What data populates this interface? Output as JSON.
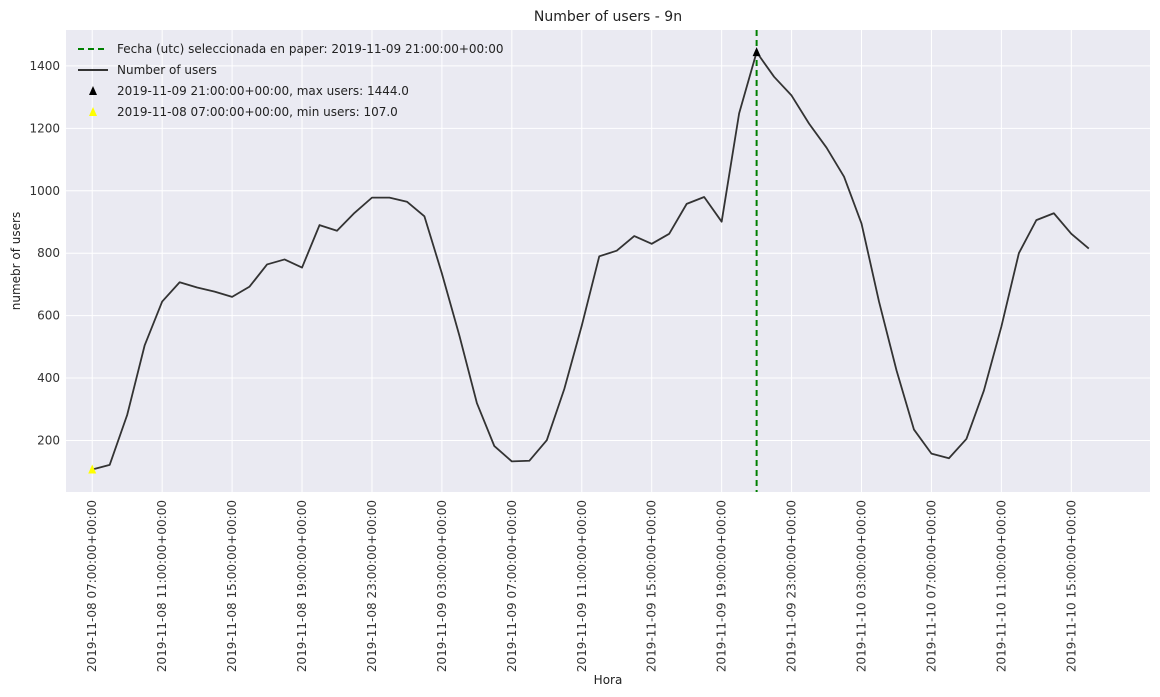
{
  "chart_data": {
    "type": "line",
    "title": "Number of users - 9n",
    "xlabel": "Hora",
    "ylabel": "numebr of users",
    "ylim": [
      35,
      1515
    ],
    "yticks": [
      200,
      400,
      600,
      800,
      1000,
      1200,
      1400
    ],
    "xlim": [
      -1.5,
      60.5
    ],
    "grid": true,
    "legend_position": "top-left",
    "xtick_labels": [
      {
        "i": 0,
        "label": "2019-11-08 07:00:00+00:00"
      },
      {
        "i": 4,
        "label": "2019-11-08 11:00:00+00:00"
      },
      {
        "i": 8,
        "label": "2019-11-08 15:00:00+00:00"
      },
      {
        "i": 12,
        "label": "2019-11-08 19:00:00+00:00"
      },
      {
        "i": 16,
        "label": "2019-11-08 23:00:00+00:00"
      },
      {
        "i": 20,
        "label": "2019-11-09 03:00:00+00:00"
      },
      {
        "i": 24,
        "label": "2019-11-09 07:00:00+00:00"
      },
      {
        "i": 28,
        "label": "2019-11-09 11:00:00+00:00"
      },
      {
        "i": 32,
        "label": "2019-11-09 15:00:00+00:00"
      },
      {
        "i": 36,
        "label": "2019-11-09 19:00:00+00:00"
      },
      {
        "i": 40,
        "label": "2019-11-09 23:00:00+00:00"
      },
      {
        "i": 44,
        "label": "2019-11-10 03:00:00+00:00"
      },
      {
        "i": 48,
        "label": "2019-11-10 07:00:00+00:00"
      },
      {
        "i": 52,
        "label": "2019-11-10 11:00:00+00:00"
      },
      {
        "i": 56,
        "label": "2019-11-10 15:00:00+00:00"
      }
    ],
    "series": [
      {
        "name": "Number of users",
        "color": "#333333",
        "values": [
          107,
          122,
          282,
          505,
          645,
          707,
          690,
          677,
          660,
          693,
          764,
          780,
          754,
          890,
          872,
          929,
          978,
          978,
          965,
          918,
          735,
          536,
          320,
          182,
          133,
          135,
          201,
          365,
          568,
          790,
          808,
          855,
          830,
          862,
          958,
          980,
          901,
          1248,
          1444,
          1365,
          1305,
          1215,
          1138,
          1045,
          895,
          645,
          425,
          235,
          158,
          143,
          205,
          360,
          565,
          800,
          906,
          928,
          862,
          815
        ]
      }
    ],
    "vline": {
      "i": 38,
      "color": "#008000",
      "label": "Fecha (utc) seleccionada en paper: 2019-11-09 21:00:00+00:00"
    },
    "markers": [
      {
        "i": 38,
        "value": 1444.0,
        "color": "#000000",
        "label": "2019-11-09 21:00:00+00:00, max users: 1444.0"
      },
      {
        "i": 0,
        "value": 107.0,
        "color": "#ffff00",
        "label": "2019-11-08 07:00:00+00:00, min users: 107.0"
      }
    ]
  }
}
